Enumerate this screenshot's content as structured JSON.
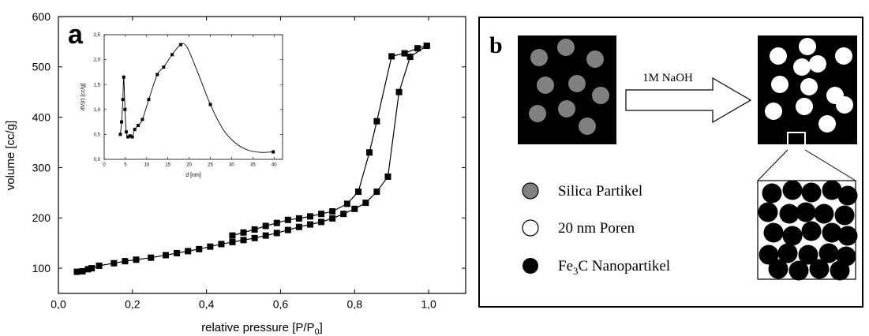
{
  "chart_data": [
    {
      "type": "line",
      "panel_label": "a",
      "xlabel": "relative pressure [P/P",
      "xlabel_sub": "0",
      "xlabel_close": "]",
      "ylabel": "volume [cc/g]",
      "xlim": [
        0,
        1.1
      ],
      "ylim": [
        50,
        600
      ],
      "x_ticks": [
        0.0,
        0.2,
        0.4,
        0.6,
        0.8,
        1.0
      ],
      "x_tick_labels": [
        "0,0",
        "0,2",
        "0,4",
        "0,6",
        "0,8",
        "1,0"
      ],
      "y_ticks": [
        100,
        200,
        300,
        400,
        500,
        600
      ],
      "y_tick_labels": [
        "100",
        "200",
        "300",
        "400",
        "500",
        "600"
      ],
      "marker": "square",
      "color": "#000000",
      "series": [
        {
          "x": [
            0.05,
            0.065,
            0.08,
            0.09,
            0.11,
            0.15,
            0.18,
            0.21,
            0.25,
            0.29,
            0.32,
            0.35,
            0.38,
            0.41,
            0.44,
            0.47,
            0.5,
            0.53,
            0.56,
            0.59,
            0.62,
            0.65,
            0.68,
            0.71,
            0.74,
            0.77,
            0.8,
            0.83,
            0.86,
            0.89,
            0.92,
            0.95,
            0.995
          ],
          "y": [
            93,
            94,
            98,
            100,
            105,
            110,
            114,
            117,
            121,
            126,
            130,
            134,
            138,
            143,
            148,
            152,
            156,
            160,
            165,
            170,
            176,
            182,
            187,
            192,
            199,
            208,
            218,
            230,
            252,
            282,
            450,
            520,
            542
          ]
        },
        {
          "x": [
            0.995,
            0.97,
            0.935,
            0.9,
            0.86,
            0.84,
            0.81,
            0.78,
            0.74,
            0.71,
            0.68,
            0.65,
            0.62,
            0.59,
            0.56,
            0.53,
            0.5,
            0.47
          ],
          "y": [
            542,
            537,
            527,
            521,
            392,
            330,
            252,
            228,
            213,
            208,
            203,
            199,
            196,
            190,
            184,
            177,
            171,
            165
          ]
        }
      ],
      "inset": {
        "type": "line",
        "xlabel": "d [nm]",
        "ylabel": "dV(r) [cc/g]",
        "xlim": [
          0,
          42
        ],
        "ylim": [
          0,
          2.5
        ],
        "x_ticks": [
          0,
          5,
          10,
          15,
          20,
          25,
          30,
          35,
          40
        ],
        "x_tick_labels": [
          "0",
          "5",
          "10",
          "15",
          "20",
          "25",
          "30",
          "35",
          "40"
        ],
        "y_ticks": [
          0.0,
          0.5,
          1.0,
          1.5,
          2.0,
          2.5
        ],
        "y_tick_labels": [
          "0,0",
          "0,5",
          "1,0",
          "1,5",
          "2,0",
          "2,5"
        ],
        "marker": "square",
        "series": [
          {
            "x": [
              3.8,
              4.1,
              4.4,
              4.6,
              4.9,
              5.2,
              5.6,
              6.1,
              6.6,
              7.2,
              8.0,
              9.0,
              10.5,
              12.5,
              14.0,
              16.0,
              18.0,
              19.5,
              22.0,
              25.0,
              28.0,
              31.0,
              34.0,
              37.0,
              39.8
            ],
            "y": [
              0.5,
              0.75,
              1.2,
              1.65,
              1.0,
              0.55,
              0.45,
              0.47,
              0.45,
              0.6,
              0.68,
              0.8,
              1.2,
              1.7,
              1.85,
              2.1,
              2.3,
              2.25,
              1.75,
              1.1,
              0.6,
              0.32,
              0.18,
              0.14,
              0.15
            ]
          }
        ]
      }
    }
  ],
  "panel_b": {
    "label": "b",
    "arrow_label": "1M NaOH",
    "legend": {
      "silica": "Silica Partikel",
      "pores": "20 nm Poren",
      "fe3c_main": "Fe",
      "fe3c_sub": "3",
      "fe3c_rest": "C Nanopartikel"
    },
    "colors": {
      "silica": "#808080",
      "pore": "#ffffff",
      "fe3c": "#000000"
    }
  }
}
